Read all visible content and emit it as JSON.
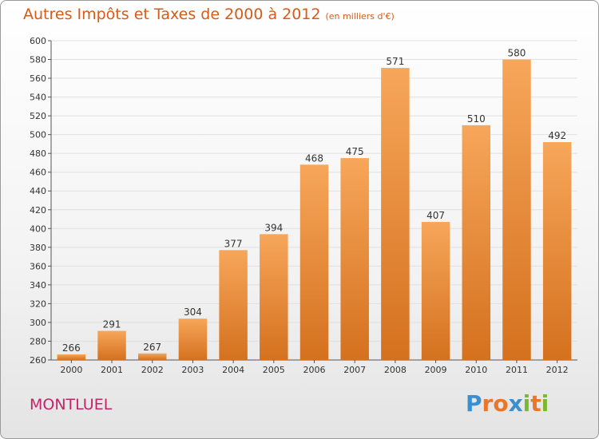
{
  "title": "Autres Impôts et Taxes de 2000 à 2012",
  "unit_note": "(en milliers d'€)",
  "location": "MONTLUEL",
  "logo": {
    "text": "Proxiti",
    "letters": [
      "P",
      "r",
      "o",
      "x",
      "i",
      "t",
      "i"
    ],
    "colors": [
      "#3b8fd0",
      "#e8772a",
      "#e8772a",
      "#3b8fd0",
      "#7cb82f",
      "#e8772a",
      "#7cb82f"
    ]
  },
  "colors": {
    "bar_top": "#f7a65a",
    "bar_bottom": "#d4711e",
    "title": "#d85a16",
    "location": "#c3236a",
    "grid": "#e0e0e0"
  },
  "chart_data": {
    "type": "bar",
    "categories": [
      "2000",
      "2001",
      "2002",
      "2003",
      "2004",
      "2005",
      "2006",
      "2007",
      "2008",
      "2009",
      "2010",
      "2011",
      "2012"
    ],
    "values": [
      266,
      291,
      267,
      304,
      377,
      394,
      468,
      475,
      571,
      407,
      510,
      580,
      492
    ],
    "value_labels": [
      "266",
      "291",
      "267",
      "304",
      "377",
      "394",
      "468",
      "475",
      "571",
      "407",
      "510",
      "580",
      "492"
    ],
    "ylim": [
      260,
      600
    ],
    "yticks": [
      "260",
      "280",
      "300",
      "320",
      "340",
      "360",
      "380",
      "400",
      "420",
      "440",
      "460",
      "480",
      "500",
      "520",
      "540",
      "560",
      "580",
      "600"
    ],
    "grid": true
  }
}
